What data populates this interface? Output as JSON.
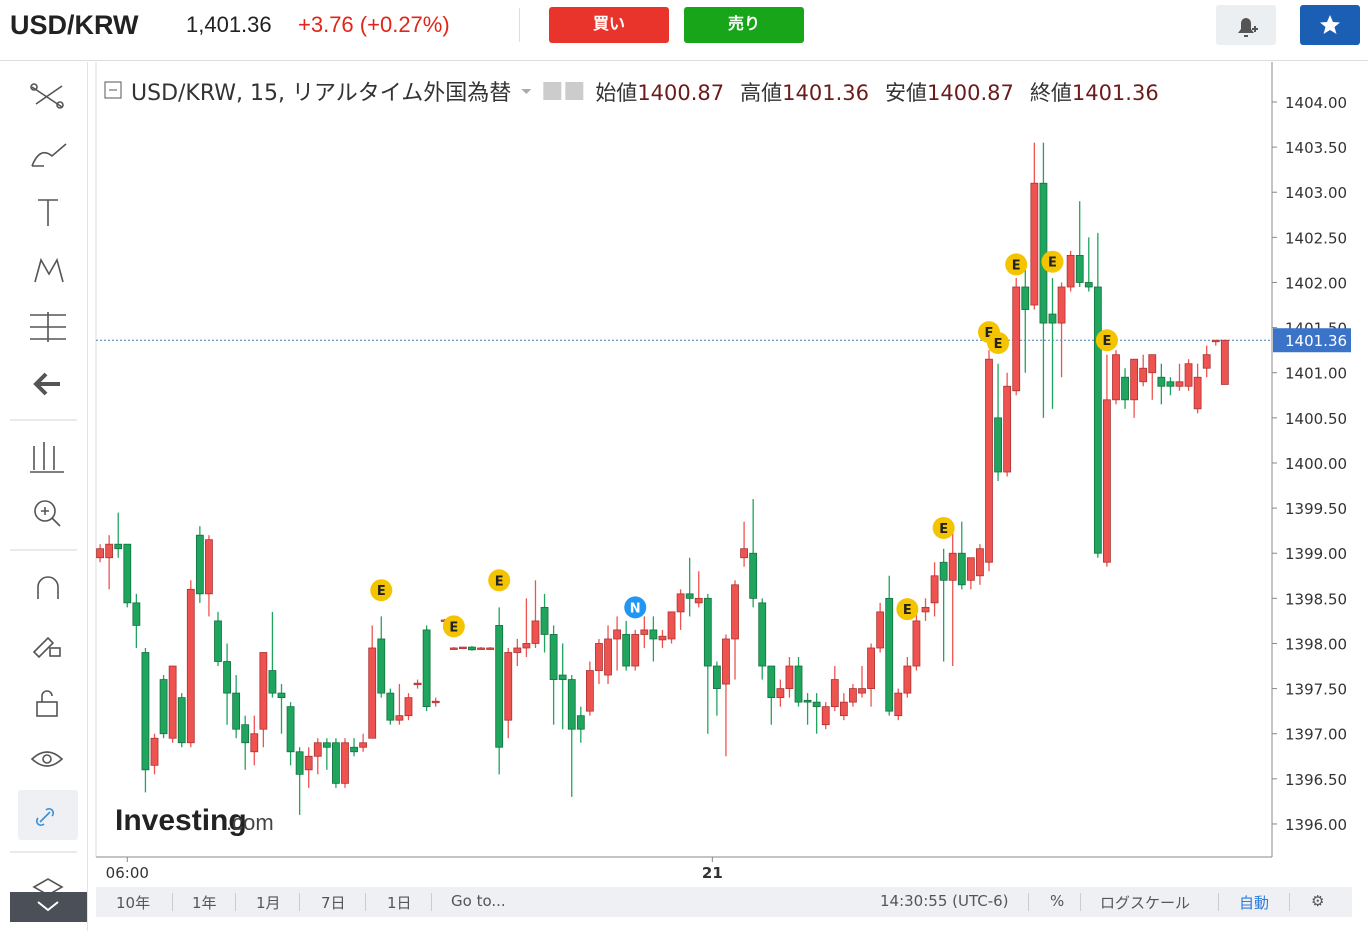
{
  "header": {
    "symbol": "USD/KRW",
    "price": "1,401.36",
    "change": "+3.76",
    "change_pct": "(+0.27%)",
    "buy": "買い",
    "sell": "売り"
  },
  "bottom_bar": {
    "ranges": [
      "10年",
      "1年",
      "1月",
      "7日",
      "1日",
      "Go to..."
    ],
    "time": "14:30:55 (UTC-6)",
    "percent": "%",
    "log": "ログスケール",
    "auto": "自動"
  },
  "logo": {
    "brand": "Investing",
    "suffix": ".com"
  },
  "chart_data": {
    "type": "candlestick",
    "title": "USD/KRW, 15, リアルタイム外国為替",
    "ohlc_legend": [
      {
        "label": "始値",
        "value": 1400.87
      },
      {
        "label": "高値",
        "value": 1401.36
      },
      {
        "label": "安値",
        "value": 1400.87
      },
      {
        "label": "終値",
        "value": 1401.36
      }
    ],
    "up_color": "#ef5350",
    "down_color": "#1fa55e",
    "open": [
      1398.95,
      1398.95,
      1399.1,
      1399.1,
      1398.45,
      1397.9,
      1396.65,
      1397.6,
      1396.95,
      1397.4,
      1396.9,
      1399.2,
      1398.55,
      1398.25,
      1397.8,
      1397.45,
      1397.1,
      1396.8,
      1397.05,
      1397.7,
      1397.45,
      1397.3,
      1396.8,
      1396.6,
      1396.75,
      1396.9,
      1396.9,
      1396.45,
      1396.85,
      1396.85,
      1396.95,
      1398.05,
      1397.45,
      1397.15,
      1397.2,
      1397.55,
      1398.15,
      1397.35,
      1398.25,
      1397.94,
      1397.95,
      1397.96,
      1397.94,
      1397.94,
      1398.2,
      1397.15,
      1397.9,
      1397.95,
      1398.0,
      1398.4,
      1398.1,
      1397.65,
      1397.6,
      1397.2,
      1397.25,
      1397.7,
      1397.65,
      1398.05,
      1398.1,
      1397.75,
      1398.1,
      1398.15,
      1398.04,
      1398.05,
      1398.35,
      1398.55,
      1398.45,
      1398.5,
      1397.75,
      1397.55,
      1398.05,
      1398.95,
      1399.0,
      1398.45,
      1397.75,
      1397.4,
      1397.5,
      1397.75,
      1397.37,
      1397.35,
      1397.1,
      1397.3,
      1397.2,
      1397.35,
      1397.45,
      1397.5,
      1397.95,
      1398.5,
      1397.2,
      1397.45,
      1397.75,
      1398.35,
      1398.45,
      1398.9,
      1398.7,
      1399.0,
      1398.7,
      1398.75,
      1398.9,
      1400.5,
      1399.9,
      1400.8,
      1401.95,
      1401.75,
      1403.1,
      1401.65,
      1401.55,
      1401.95,
      1402.3,
      1402.0,
      1401.95,
      1398.9,
      1400.7,
      1400.95,
      1400.7,
      1400.9,
      1401.0,
      1400.95,
      1400.9,
      1400.85,
      1400.85,
      1400.6,
      1401.05,
      1401.35,
      1400.87
    ],
    "high": [
      1399.1,
      1399.2,
      1399.45,
      1399.1,
      1398.55,
      1397.95,
      1397.0,
      1397.65,
      1397.75,
      1397.45,
      1398.7,
      1399.3,
      1399.2,
      1398.35,
      1398.0,
      1397.65,
      1397.2,
      1397.2,
      1397.9,
      1398.35,
      1397.55,
      1397.35,
      1396.85,
      1396.85,
      1396.95,
      1396.95,
      1396.95,
      1396.95,
      1396.95,
      1397.0,
      1398.2,
      1398.3,
      1397.5,
      1397.55,
      1397.45,
      1397.6,
      1398.2,
      1397.4,
      1398.27,
      1397.96,
      1397.96,
      1397.97,
      1397.96,
      1397.96,
      1398.4,
      1397.95,
      1398.05,
      1398.5,
      1398.7,
      1398.55,
      1398.2,
      1398.0,
      1397.65,
      1397.3,
      1397.8,
      1398.05,
      1398.2,
      1398.3,
      1398.25,
      1398.15,
      1398.3,
      1398.3,
      1398.15,
      1398.35,
      1398.6,
      1398.95,
      1398.8,
      1398.55,
      1397.8,
      1398.1,
      1398.7,
      1399.35,
      1399.6,
      1398.5,
      1397.75,
      1397.6,
      1397.85,
      1397.85,
      1397.45,
      1397.45,
      1397.35,
      1397.75,
      1397.45,
      1397.55,
      1397.75,
      1398.0,
      1398.45,
      1398.75,
      1397.5,
      1397.85,
      1398.4,
      1398.5,
      1398.9,
      1399.05,
      1399.3,
      1399.35,
      1398.95,
      1399.1,
      1401.25,
      1401.1,
      1401.0,
      1402.05,
      1402.2,
      1403.55,
      1403.55,
      1402.05,
      1402.0,
      1402.35,
      1402.9,
      1402.5,
      1402.55,
      1401.2,
      1401.25,
      1401.05,
      1401.15,
      1401.2,
      1401.2,
      1401.1,
      1400.95,
      1401.1,
      1401.15,
      1401.1,
      1401.3,
      1401.36,
      1401.36
    ],
    "low": [
      1398.9,
      1398.6,
      1398.95,
      1398.4,
      1397.95,
      1396.35,
      1396.55,
      1396.95,
      1396.9,
      1396.85,
      1396.85,
      1398.45,
      1398.3,
      1397.75,
      1397.1,
      1396.95,
      1396.6,
      1396.65,
      1396.85,
      1397.4,
      1397.0,
      1396.65,
      1396.1,
      1396.4,
      1396.55,
      1396.6,
      1396.4,
      1396.4,
      1396.75,
      1396.8,
      1396.95,
      1397.4,
      1397.1,
      1397.1,
      1397.15,
      1397.5,
      1397.25,
      1397.3,
      1398.23,
      1397.93,
      1397.94,
      1397.92,
      1397.93,
      1397.93,
      1396.55,
      1396.95,
      1397.75,
      1397.85,
      1397.95,
      1397.9,
      1397.1,
      1397.05,
      1396.3,
      1396.9,
      1397.2,
      1397.55,
      1397.55,
      1397.7,
      1397.7,
      1397.7,
      1397.95,
      1397.8,
      1397.95,
      1398.0,
      1398.15,
      1398.3,
      1398.4,
      1397.0,
      1397.2,
      1396.75,
      1397.6,
      1398.85,
      1398.4,
      1397.6,
      1397.1,
      1397.3,
      1397.4,
      1397.3,
      1397.1,
      1397.0,
      1397.05,
      1397.25,
      1397.15,
      1397.3,
      1397.4,
      1397.3,
      1397.9,
      1397.2,
      1397.15,
      1397.4,
      1397.7,
      1398.25,
      1398.3,
      1397.8,
      1397.75,
      1398.6,
      1398.6,
      1398.65,
      1398.8,
      1399.8,
      1399.85,
      1400.75,
      1401.0,
      1401.7,
      1400.5,
      1400.6,
      1400.95,
      1401.9,
      1401.95,
      1401.9,
      1398.95,
      1398.85,
      1400.65,
      1400.6,
      1400.5,
      1400.85,
      1400.7,
      1400.65,
      1400.75,
      1400.8,
      1400.8,
      1400.55,
      1400.95,
      1401.3,
      1400.87
    ],
    "close": [
      1399.05,
      1399.1,
      1399.05,
      1398.45,
      1398.2,
      1396.6,
      1396.95,
      1397.0,
      1397.75,
      1396.9,
      1398.6,
      1398.55,
      1399.15,
      1397.8,
      1397.45,
      1397.05,
      1396.9,
      1397.0,
      1397.9,
      1397.45,
      1397.4,
      1396.8,
      1396.55,
      1396.75,
      1396.9,
      1396.85,
      1396.45,
      1396.9,
      1396.8,
      1396.9,
      1397.95,
      1397.45,
      1397.15,
      1397.2,
      1397.4,
      1397.56,
      1397.3,
      1397.36,
      1398.26,
      1397.95,
      1397.96,
      1397.93,
      1397.95,
      1397.95,
      1396.85,
      1397.9,
      1397.95,
      1398.0,
      1398.25,
      1398.1,
      1397.6,
      1397.6,
      1397.05,
      1397.05,
      1397.7,
      1398.0,
      1398.05,
      1398.15,
      1397.75,
      1398.1,
      1398.15,
      1398.05,
      1398.08,
      1398.35,
      1398.55,
      1398.5,
      1398.5,
      1397.75,
      1397.5,
      1398.05,
      1398.65,
      1399.05,
      1398.5,
      1397.75,
      1397.4,
      1397.5,
      1397.75,
      1397.35,
      1397.35,
      1397.3,
      1397.3,
      1397.6,
      1397.35,
      1397.5,
      1397.5,
      1397.95,
      1398.35,
      1397.25,
      1397.45,
      1397.75,
      1398.25,
      1398.4,
      1398.75,
      1398.7,
      1399.0,
      1398.65,
      1398.95,
      1399.05,
      1401.15,
      1399.9,
      1400.85,
      1401.95,
      1401.7,
      1403.1,
      1401.55,
      1401.55,
      1401.95,
      1402.3,
      1402.0,
      1401.95,
      1399.0,
      1400.7,
      1401.2,
      1400.7,
      1401.15,
      1401.05,
      1401.2,
      1400.85,
      1400.85,
      1400.9,
      1401.1,
      1400.95,
      1401.2,
      1401.36,
      1401.36
    ],
    "events": [
      {
        "label": "E",
        "index": 31,
        "value": 1398.59,
        "color": "#f5c400"
      },
      {
        "label": "E",
        "index": 39,
        "value": 1398.19,
        "color": "#f5c400"
      },
      {
        "label": "E",
        "index": 44,
        "value": 1398.7,
        "color": "#f5c400"
      },
      {
        "label": "N",
        "index": 59,
        "value": 1398.4,
        "color": "#2196f3"
      },
      {
        "label": "E",
        "index": 89,
        "value": 1398.38,
        "color": "#f5c400"
      },
      {
        "label": "E",
        "index": 93,
        "value": 1399.28,
        "color": "#f5c400"
      },
      {
        "label": "E",
        "index": 98,
        "value": 1401.45,
        "color": "#f5c400"
      },
      {
        "label": "E",
        "index": 99,
        "value": 1401.33,
        "color": "#f5c400"
      },
      {
        "label": "E",
        "index": 101,
        "value": 1402.2,
        "color": "#f5c400"
      },
      {
        "label": "E",
        "index": 105,
        "value": 1402.23,
        "color": "#f5c400"
      },
      {
        "label": "E",
        "index": 111,
        "value": 1401.36,
        "color": "#f5c400"
      }
    ],
    "last_price": 1401.36,
    "xlim": [
      -0.45,
      129.2
    ],
    "xticks": [
      {
        "value": 3,
        "label": "06:00"
      },
      {
        "value": 67.5,
        "label": "21"
      }
    ],
    "ylim": [
      1395.634,
      1404.443
    ],
    "yticks": [
      {
        "value": 1396,
        "label": "1396.00"
      },
      {
        "value": 1396.5,
        "label": "1396.50"
      },
      {
        "value": 1397,
        "label": "1397.00"
      },
      {
        "value": 1397.5,
        "label": "1397.50"
      },
      {
        "value": 1398,
        "label": "1398.00"
      },
      {
        "value": 1398.5,
        "label": "1398.50"
      },
      {
        "value": 1399,
        "label": "1399.00"
      },
      {
        "value": 1399.5,
        "label": "1399.50"
      },
      {
        "value": 1400,
        "label": "1400.00"
      },
      {
        "value": 1400.5,
        "label": "1400.50"
      },
      {
        "value": 1401,
        "label": "1401.00"
      },
      {
        "value": 1401.5,
        "label": "1401.50"
      },
      {
        "value": 1402,
        "label": "1402.00"
      },
      {
        "value": 1402.5,
        "label": "1402.50"
      },
      {
        "value": 1403,
        "label": "1403.00"
      },
      {
        "value": 1403.5,
        "label": "1403.50"
      },
      {
        "value": 1404,
        "label": "1404.00"
      }
    ]
  }
}
